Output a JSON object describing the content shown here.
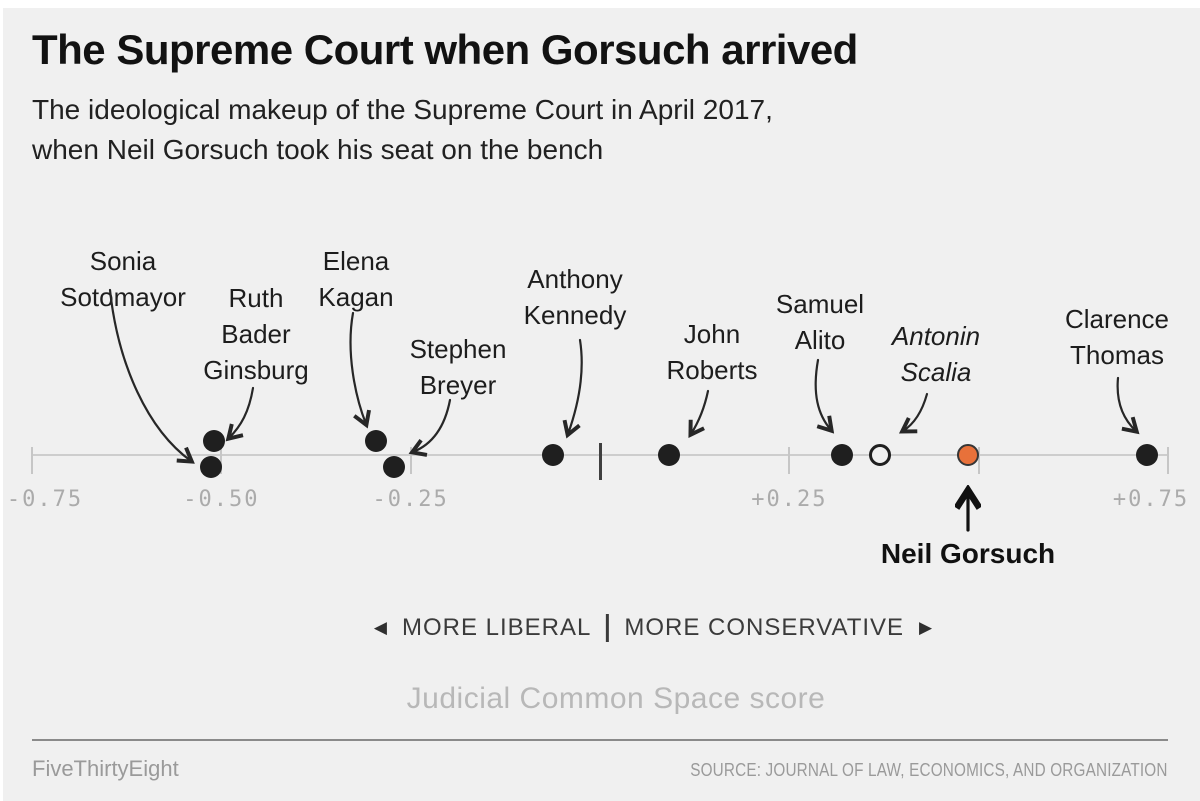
{
  "chart_data": {
    "type": "scatter",
    "title": "The Supreme Court when Gorsuch arrived",
    "subtitle_lines": [
      "The ideological makeup of the Supreme Court in April 2017,",
      "when Neil Gorsuch took his seat on the bench"
    ],
    "xlabel": "Judicial Common Space score",
    "xlim": [
      -0.75,
      0.75
    ],
    "grid": false,
    "zero_divider": true,
    "ticks": [
      {
        "value": -0.75,
        "label": "-0.75"
      },
      {
        "value": -0.5,
        "label": "-0.50"
      },
      {
        "value": -0.25,
        "label": "-0.25"
      },
      {
        "value": 0.25,
        "label": "+0.25"
      },
      {
        "value": 0.5,
        "label": ""
      },
      {
        "value": 0.75,
        "label": "+0.75"
      }
    ],
    "direction_legend": {
      "left_arrow": "◀",
      "left": "MORE LIBERAL",
      "divider": "|",
      "right": "MORE CONSERVATIVE",
      "right_arrow": "▶"
    },
    "points": [
      {
        "id": "sotomayor",
        "name": "Sonia Sotomayor",
        "label_lines": [
          "Sonia",
          "Sotomayor"
        ],
        "score": -0.513,
        "dot": "solid",
        "dodge": "below",
        "italic": false
      },
      {
        "id": "ginsburg",
        "name": "Ruth Bader Ginsburg",
        "label_lines": [
          "Ruth",
          "Bader",
          "Ginsburg"
        ],
        "score": -0.51,
        "dot": "solid",
        "dodge": "above",
        "italic": false
      },
      {
        "id": "kagan",
        "name": "Elena Kagan",
        "label_lines": [
          "Elena",
          "Kagan"
        ],
        "score": -0.296,
        "dot": "solid",
        "dodge": "above",
        "italic": false
      },
      {
        "id": "breyer",
        "name": "Stephen Breyer",
        "label_lines": [
          "Stephen",
          "Breyer"
        ],
        "score": -0.272,
        "dot": "solid",
        "dodge": "below",
        "italic": false
      },
      {
        "id": "kennedy",
        "name": "Anthony Kennedy",
        "label_lines": [
          "Anthony",
          "Kennedy"
        ],
        "score": -0.062,
        "dot": "solid",
        "dodge": "on",
        "italic": false
      },
      {
        "id": "roberts",
        "name": "John Roberts",
        "label_lines": [
          "John",
          "Roberts"
        ],
        "score": 0.091,
        "dot": "solid",
        "dodge": "on",
        "italic": false
      },
      {
        "id": "alito",
        "name": "Samuel Alito",
        "label_lines": [
          "Samuel",
          "Alito"
        ],
        "score": 0.319,
        "dot": "solid",
        "dodge": "on",
        "italic": false
      },
      {
        "id": "scalia",
        "name": "Antonin Scalia",
        "label_lines": [
          "Antonin",
          "Scalia"
        ],
        "score": 0.37,
        "dot": "open",
        "dodge": "on",
        "italic": true
      },
      {
        "id": "gorsuch",
        "name": "Neil Gorsuch",
        "label_lines": [
          "Neil Gorsuch"
        ],
        "score": 0.486,
        "dot": "highlight",
        "dodge": "on",
        "italic": false,
        "label_position": "below"
      },
      {
        "id": "thomas",
        "name": "Clarence Thomas",
        "label_lines": [
          "Clarence",
          "Thomas"
        ],
        "score": 0.722,
        "dot": "solid",
        "dodge": "on",
        "italic": false
      }
    ],
    "colors": {
      "background": "#f0f0f0",
      "dot": "#1f1f1f",
      "highlight": "#e8713a",
      "axis": "#cdcdcd",
      "tick_label": "#ababab",
      "zero_marker": "#404040"
    }
  },
  "footer": {
    "brand": "FiveThirtyEight",
    "source": "SOURCE: JOURNAL OF LAW, ECONOMICS, AND ORGANIZATION"
  }
}
